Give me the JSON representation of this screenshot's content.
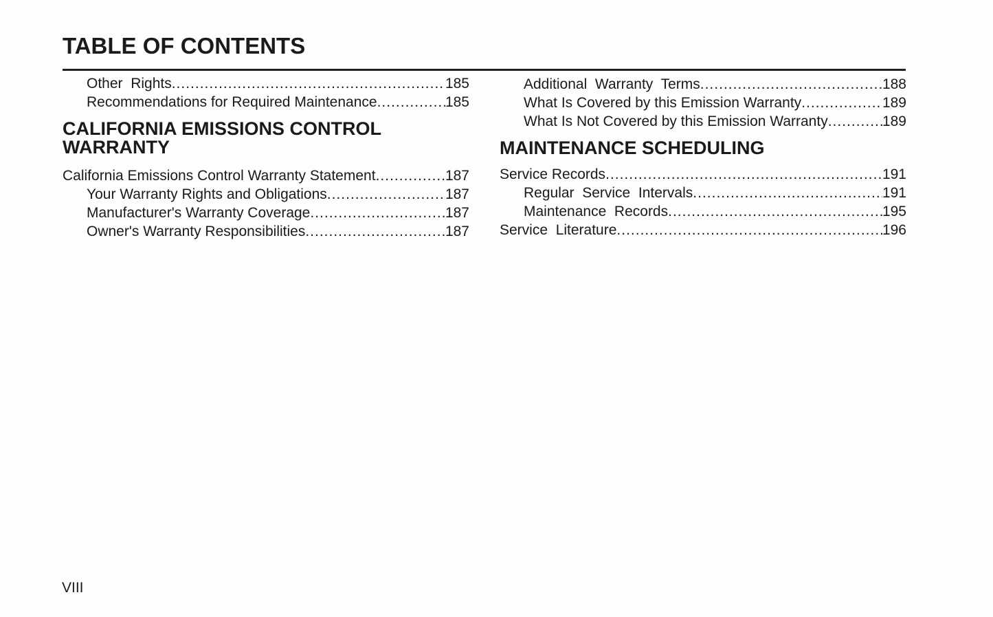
{
  "title": "TABLE OF CONTENTS",
  "left": [
    {
      "type": "entry",
      "indent": true,
      "text": "Other  Rights",
      "page": "185"
    },
    {
      "type": "entry",
      "indent": true,
      "text": "Recommendations for Required Maintenance",
      "page": "185"
    },
    {
      "type": "heading",
      "text": "CALIFORNIA EMISSIONS CONTROL WARRANTY"
    },
    {
      "type": "entry",
      "indent": false,
      "text": "California Emissions Control Warranty Statement",
      "page": "187"
    },
    {
      "type": "entry",
      "indent": true,
      "text": "Your Warranty Rights and Obligations",
      "page": "187"
    },
    {
      "type": "entry",
      "indent": true,
      "text": "Manufacturer's Warranty Coverage",
      "page": "187"
    },
    {
      "type": "entry",
      "indent": true,
      "text": "Owner's Warranty Responsibilities",
      "page": "187"
    }
  ],
  "right": [
    {
      "type": "entry",
      "indent": true,
      "text": "Additional  Warranty  Terms",
      "page": "188"
    },
    {
      "type": "entry",
      "indent": true,
      "text": "What Is Covered by this Emission Warranty",
      "page": "189"
    },
    {
      "type": "entry",
      "indent": true,
      "text": "What Is Not Covered by this Emission Warranty",
      "page": "189"
    },
    {
      "type": "heading",
      "text": "MAINTENANCE SCHEDULING"
    },
    {
      "type": "entry",
      "indent": false,
      "text": "Service Records",
      "page": "191"
    },
    {
      "type": "entry",
      "indent": true,
      "text": "Regular  Service  Intervals",
      "page": "191"
    },
    {
      "type": "entry",
      "indent": true,
      "text": "Maintenance  Records",
      "page": "195"
    },
    {
      "type": "entry",
      "indent": false,
      "text": "Service  Literature",
      "page": "196"
    }
  ],
  "page_number": "VIII"
}
